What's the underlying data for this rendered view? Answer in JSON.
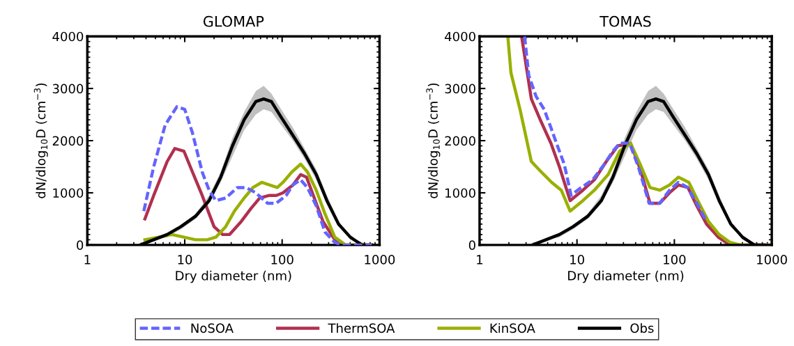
{
  "chart_data": [
    {
      "type": "line",
      "title": "GLOMAP",
      "xlabel": "Dry diameter (nm)",
      "ylabel": "dN/dlog$_{10}$D (cm$^{−3}$)",
      "log": "x",
      "xlim": [
        1,
        1000
      ],
      "xticks": [
        1,
        10,
        100,
        1000
      ],
      "ylim": [
        0,
        4000
      ],
      "yticks": [
        0,
        1000,
        2000,
        3000,
        4000
      ],
      "grid": false,
      "legend": "bottom",
      "series": [
        {
          "name": "NoSOA",
          "color": "#6464ff",
          "line_style": "dashed",
          "x": [
            3.8,
            4.8,
            6.3,
            8.3,
            10,
            12,
            15.1,
            17.8,
            20.9,
            26.3,
            34.7,
            42.7,
            53.7,
            70.8,
            87.1,
            110,
            129,
            155,
            182,
            224,
            275,
            347,
            407,
            832
          ],
          "values": [
            650,
            1500,
            2300,
            2650,
            2600,
            2150,
            1400,
            1050,
            850,
            900,
            1100,
            1100,
            1000,
            800,
            800,
            950,
            1150,
            1250,
            1100,
            750,
            250,
            50,
            0,
            0
          ]
        },
        {
          "name": "ThermSOA",
          "color": "#b03050",
          "line_style": "solid",
          "x": [
            3.9,
            4.8,
            6.6,
            7.9,
            9.8,
            12,
            15.1,
            20,
            24.5,
            28.8,
            38,
            47.9,
            58.9,
            74.1,
            87.1,
            102,
            129,
            155,
            178,
            209,
            263,
            347,
            447,
            832
          ],
          "values": [
            500,
            950,
            1600,
            1850,
            1800,
            1400,
            950,
            350,
            200,
            200,
            450,
            700,
            900,
            950,
            950,
            1000,
            1150,
            1350,
            1300,
            950,
            450,
            100,
            0,
            0
          ]
        },
        {
          "name": "KinSOA",
          "color": "#99b000",
          "line_style": "solid",
          "x": [
            3.9,
            5.4,
            7.4,
            9.8,
            12.9,
            17,
            20.9,
            26.3,
            32.4,
            40.7,
            50.1,
            61.7,
            74.1,
            89.1,
            102,
            126,
            155,
            182,
            224,
            275,
            347,
            447,
            832
          ],
          "values": [
            100,
            150,
            200,
            150,
            100,
            100,
            150,
            350,
            650,
            900,
            1100,
            1200,
            1150,
            1100,
            1200,
            1400,
            1550,
            1400,
            1050,
            600,
            150,
            0,
            0
          ]
        },
        {
          "name": "Obs",
          "color": "#000000",
          "line_style": "solid",
          "x": [
            3.5,
            4.8,
            6.6,
            9.1,
            12.9,
            17.8,
            23.4,
            30.9,
            40.7,
            53.7,
            64.6,
            77.6,
            97.7,
            129,
            170,
            224,
            288,
            380,
            501,
            661,
            832
          ],
          "values": [
            0,
            100,
            200,
            350,
            550,
            850,
            1300,
            1900,
            2400,
            2750,
            2800,
            2750,
            2450,
            2100,
            1750,
            1350,
            850,
            400,
            150,
            0,
            0
          ],
          "lower": [
            0,
            100,
            150,
            300,
            500,
            800,
            1200,
            1700,
            2200,
            2500,
            2600,
            2550,
            2300,
            2000,
            1650,
            1250,
            800,
            400,
            100,
            0,
            0
          ],
          "upper": [
            50,
            100,
            200,
            350,
            600,
            950,
            1400,
            2050,
            2550,
            2950,
            3050,
            2900,
            2600,
            2250,
            1850,
            1450,
            950,
            450,
            150,
            50,
            0
          ]
        }
      ]
    },
    {
      "type": "line",
      "title": "TOMAS",
      "xlabel": "Dry diameter (nm)",
      "ylabel": "dN/dlog$_{10}$D (cm$^{−3}$)",
      "log": "x",
      "xlim": [
        1,
        1000
      ],
      "xticks": [
        1,
        10,
        100,
        1000
      ],
      "ylim": [
        0,
        4000
      ],
      "yticks": [
        0,
        1000,
        2000,
        3000,
        4000
      ],
      "grid": false,
      "series": [
        {
          "color": "#6464ff",
          "line_style": "dashed",
          "x": [
            2.9,
            3.2,
            3.8,
            4.6,
            5.4,
            6.3,
            7.4,
            8.7,
            11,
            14.5,
            19.1,
            23.4,
            27.5,
            34.7,
            42.7,
            55,
            70.8,
            89.1,
            110,
            138,
            170,
            214
          ],
          "values": [
            4000,
            3250,
            2850,
            2600,
            2250,
            1900,
            1550,
            950,
            1100,
            1250,
            1550,
            1800,
            1950,
            1950,
            1500,
            800,
            800,
            1050,
            1200,
            1100,
            800,
            450
          ]
        },
        {
          "color": "#b03050",
          "line_style": "solid",
          "x": [
            2.7,
            3.4,
            4.2,
            5.4,
            6.6,
            8.5,
            11.5,
            15.1,
            20,
            26.3,
            35.5,
            44.7,
            56.2,
            70.8,
            89.1,
            110,
            138,
            170,
            214,
            282,
            372,
            1000
          ],
          "values": [
            4000,
            2800,
            2400,
            1950,
            1500,
            850,
            1050,
            1250,
            1600,
            1900,
            1950,
            1450,
            800,
            800,
            1000,
            1150,
            1100,
            750,
            400,
            150,
            0,
            0
          ]
        },
        {
          "color": "#99b000",
          "line_style": "solid",
          "x": [
            1.95,
            2.1,
            2.6,
            3.4,
            4.3,
            5.5,
            6.9,
            8.5,
            11.5,
            15.1,
            20.9,
            27.5,
            35.5,
            45.7,
            56.2,
            70.8,
            89.1,
            110,
            141,
            174,
            224,
            288,
            372,
            479,
            1000
          ],
          "values": [
            4000,
            3300,
            2600,
            1600,
            1400,
            1200,
            1050,
            650,
            850,
            1050,
            1350,
            1800,
            1950,
            1500,
            1100,
            1050,
            1150,
            1300,
            1200,
            850,
            450,
            200,
            50,
            0,
            0
          ]
        },
        {
          "color": "#000000",
          "line_style": "solid",
          "x": [
            3.5,
            4.8,
            6.6,
            9.1,
            12.9,
            17.8,
            23.4,
            30.9,
            40.7,
            53.7,
            64.6,
            77.6,
            97.7,
            129,
            170,
            224,
            288,
            380,
            501,
            661,
            832
          ],
          "values": [
            0,
            100,
            200,
            350,
            550,
            850,
            1300,
            1900,
            2400,
            2750,
            2800,
            2750,
            2450,
            2100,
            1750,
            1350,
            850,
            400,
            150,
            0,
            0
          ],
          "lower": [
            0,
            100,
            150,
            300,
            500,
            800,
            1200,
            1700,
            2200,
            2500,
            2600,
            2550,
            2300,
            2000,
            1650,
            1250,
            800,
            400,
            100,
            0,
            0
          ],
          "upper": [
            50,
            100,
            200,
            350,
            600,
            950,
            1400,
            2050,
            2550,
            2950,
            3050,
            2900,
            2600,
            2250,
            1850,
            1450,
            950,
            450,
            150,
            50,
            0
          ]
        }
      ]
    }
  ]
}
